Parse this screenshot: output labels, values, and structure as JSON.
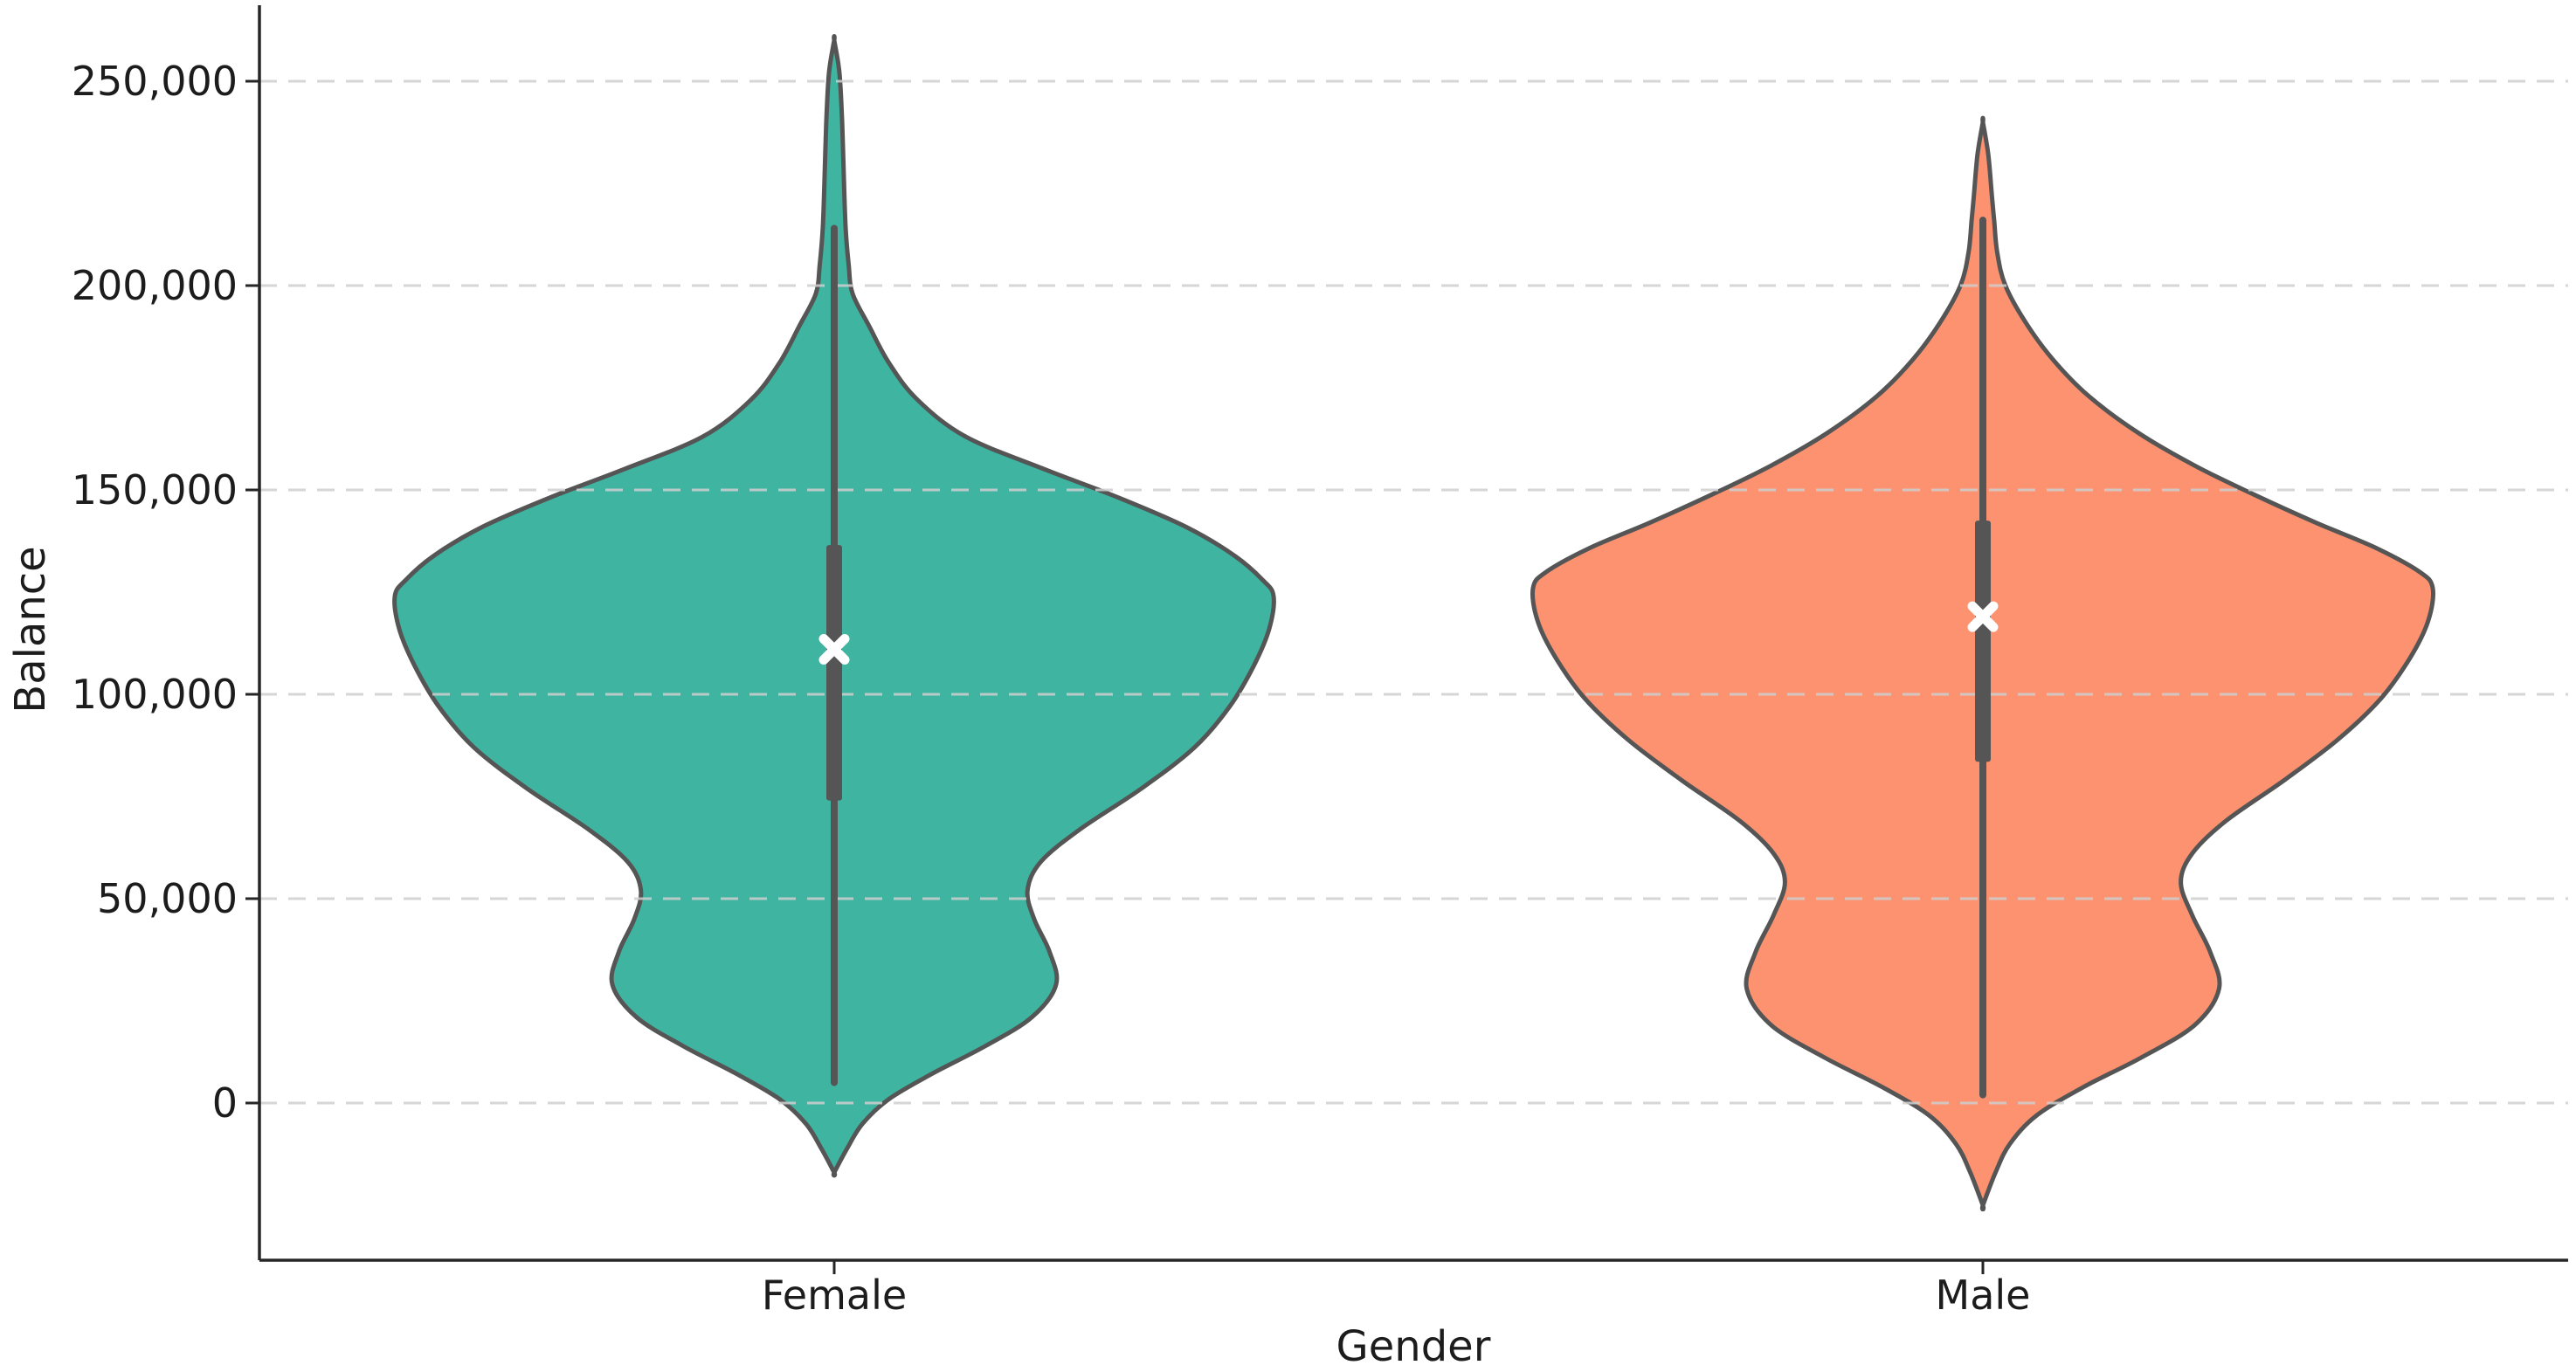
{
  "figure": {
    "background": "#ffffff"
  },
  "chart_data": {
    "type": "violin",
    "title": "",
    "xlabel": "Gender",
    "ylabel": "Balance",
    "categories": [
      "Female",
      "Male"
    ],
    "y_axis": {
      "min": -38000,
      "max": 270000,
      "tick_values": [
        0,
        50000,
        100000,
        150000,
        200000,
        250000
      ],
      "tick_labels": [
        "0",
        "50,000",
        "100,000",
        "150,000",
        "200,000",
        "250,000"
      ],
      "grid": true,
      "grid_style": "dashed"
    },
    "x_axis": {
      "tick_labels": [
        "Female",
        "Male"
      ]
    },
    "series": [
      {
        "name": "Female",
        "fill_color": "#3EB4A1",
        "stats": {
          "whisker_min": 5000,
          "q1": 74000,
          "mean": 111000,
          "q3": 136500,
          "whisker_max": 214000,
          "density_min": -17000,
          "density_max": 260000
        },
        "density_profile": [
          [
            260000,
            0
          ],
          [
            252000,
            0.012
          ],
          [
            240000,
            0.018
          ],
          [
            226000,
            0.022
          ],
          [
            214000,
            0.026
          ],
          [
            205000,
            0.033
          ],
          [
            198000,
            0.042
          ],
          [
            190000,
            0.08
          ],
          [
            181000,
            0.125
          ],
          [
            172000,
            0.19
          ],
          [
            163000,
            0.3
          ],
          [
            155000,
            0.48
          ],
          [
            148000,
            0.65
          ],
          [
            141000,
            0.8
          ],
          [
            134000,
            0.91
          ],
          [
            128000,
            0.975
          ],
          [
            124000,
            1.0
          ],
          [
            116000,
            0.99
          ],
          [
            107000,
            0.955
          ],
          [
            97000,
            0.9
          ],
          [
            87000,
            0.82
          ],
          [
            77000,
            0.7
          ],
          [
            67000,
            0.56
          ],
          [
            59000,
            0.47
          ],
          [
            52000,
            0.44
          ],
          [
            45000,
            0.455
          ],
          [
            37000,
            0.49
          ],
          [
            29000,
            0.505
          ],
          [
            21000,
            0.45
          ],
          [
            14000,
            0.345
          ],
          [
            7000,
            0.22
          ],
          [
            1000,
            0.125
          ],
          [
            -5000,
            0.065
          ],
          [
            -11000,
            0.03
          ],
          [
            -17000,
            0
          ]
        ]
      },
      {
        "name": "Male",
        "fill_color": "#FC9270",
        "stats": {
          "whisker_min": 2000,
          "q1": 83500,
          "mean": 119000,
          "q3": 142500,
          "whisker_max": 216000,
          "density_min": -25000,
          "density_max": 240000
        },
        "density_profile": [
          [
            240000,
            0
          ],
          [
            232000,
            0.012
          ],
          [
            222000,
            0.02
          ],
          [
            216000,
            0.025
          ],
          [
            208000,
            0.032
          ],
          [
            200000,
            0.05
          ],
          [
            191000,
            0.095
          ],
          [
            182000,
            0.155
          ],
          [
            173000,
            0.235
          ],
          [
            164000,
            0.345
          ],
          [
            156000,
            0.47
          ],
          [
            149000,
            0.6
          ],
          [
            142000,
            0.74
          ],
          [
            136000,
            0.87
          ],
          [
            130000,
            0.97
          ],
          [
            126000,
            1.0
          ],
          [
            118000,
            0.99
          ],
          [
            109000,
            0.95
          ],
          [
            99000,
            0.885
          ],
          [
            89000,
            0.79
          ],
          [
            79000,
            0.67
          ],
          [
            69000,
            0.54
          ],
          [
            61000,
            0.465
          ],
          [
            54000,
            0.44
          ],
          [
            46000,
            0.465
          ],
          [
            37000,
            0.505
          ],
          [
            28000,
            0.525
          ],
          [
            19000,
            0.47
          ],
          [
            11000,
            0.35
          ],
          [
            4000,
            0.225
          ],
          [
            -3000,
            0.12
          ],
          [
            -10000,
            0.06
          ],
          [
            -17000,
            0.028
          ],
          [
            -25000,
            0
          ]
        ]
      }
    ],
    "style": {
      "edge_color": "#555555",
      "box_color": "#555555",
      "whisker_color": "#555555",
      "mean_marker": "x",
      "mean_marker_color": "#ffffff",
      "grid_color": "#cfcfcf",
      "spine_color": "#262626",
      "text_color": "#1c1c1c"
    }
  }
}
